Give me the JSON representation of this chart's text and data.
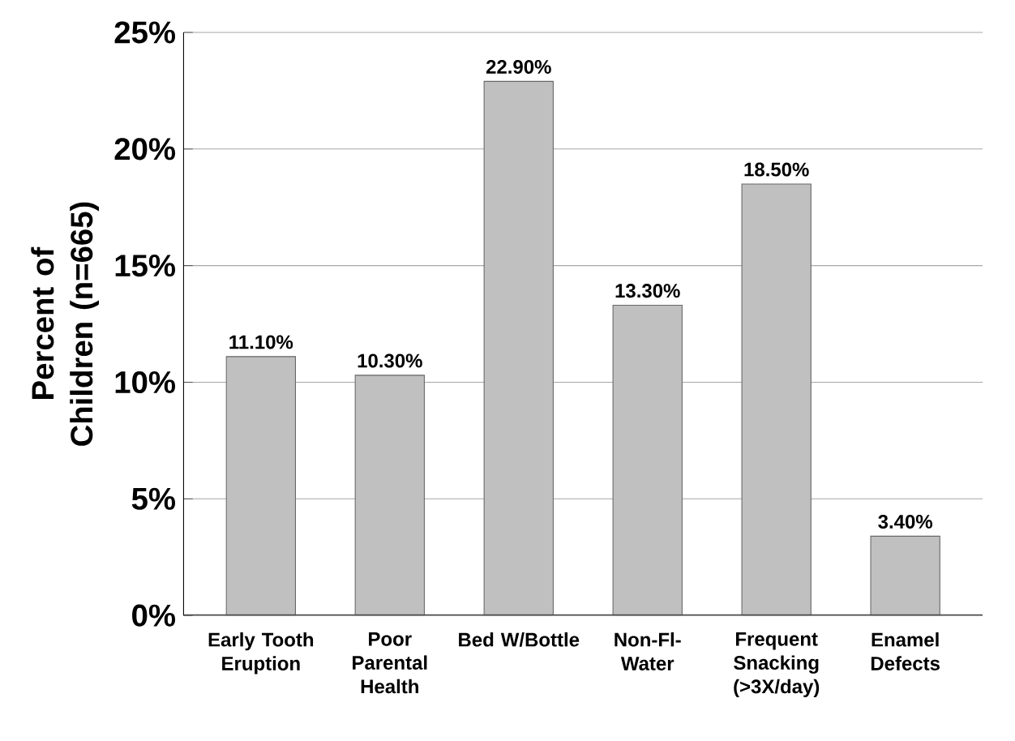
{
  "chart_data": {
    "type": "bar",
    "ylabel": "Percent of Children (n=665)",
    "categories": [
      "Early Tooth Eruption",
      "Poor Parental Health",
      "Bed W/Bottle",
      "Non-Fl- Water",
      "Frequent Snacking (>3X/day)",
      "Enamel Defects"
    ],
    "values": [
      11.1,
      10.3,
      22.9,
      13.3,
      18.5,
      3.4
    ],
    "value_labels": [
      "11.10%",
      "10.30%",
      "22.90%",
      "13.30%",
      "18.50%",
      "3.40%"
    ],
    "color": "#c0c0c0",
    "ylim": [
      0,
      25
    ],
    "yticks": [
      {
        "value": 0,
        "label": "0%"
      },
      {
        "value": 5,
        "label": "5%"
      },
      {
        "value": 10,
        "label": "10%"
      },
      {
        "value": 15,
        "label": "15%"
      },
      {
        "value": 20,
        "label": "20%"
      },
      {
        "value": 25,
        "label": "25%"
      }
    ],
    "grid": "y"
  }
}
